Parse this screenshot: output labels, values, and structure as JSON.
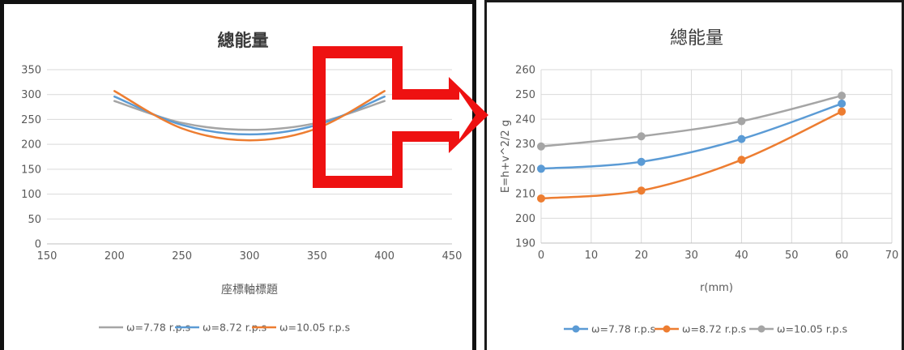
{
  "colors": {
    "gray": "#a5a5a5",
    "blue": "#5b9bd5",
    "orange": "#ed7d31",
    "grid": "#d9d9d9",
    "arrow": "#ee1111"
  },
  "chart_data": [
    {
      "type": "line",
      "title": "總能量",
      "xlabel": "座標軸標題",
      "ylabel": "",
      "xlim": [
        150,
        450
      ],
      "ylim": [
        0,
        350
      ],
      "xticks": [
        "150",
        "200",
        "250",
        "300",
        "350",
        "400",
        "450"
      ],
      "yticks": [
        "0",
        "50",
        "100",
        "150",
        "200",
        "250",
        "300",
        "350"
      ],
      "markers": false,
      "grid": true,
      "legend": "bottom",
      "series": [
        {
          "name": "ω=7.78 r.p.s",
          "color": "gray",
          "points": [
            [
              200,
              287
            ],
            [
              250,
              243
            ],
            [
              300,
              229
            ],
            [
              350,
              243
            ],
            [
              400,
              287
            ]
          ]
        },
        {
          "name": "ω=8.72 r.p.s",
          "color": "blue",
          "points": [
            [
              200,
              296
            ],
            [
              250,
              239
            ],
            [
              300,
              220
            ],
            [
              350,
              239
            ],
            [
              400,
              296
            ]
          ]
        },
        {
          "name": "ω=10.05 r.p.s",
          "color": "orange",
          "points": [
            [
              200,
              307
            ],
            [
              250,
              232
            ],
            [
              300,
              208
            ],
            [
              350,
              232
            ],
            [
              400,
              307
            ]
          ]
        }
      ]
    },
    {
      "type": "line",
      "title": "總能量",
      "xlabel": "r(mm)",
      "ylabel": "E=h+v^2/2 g",
      "xlim": [
        0,
        70
      ],
      "ylim": [
        190,
        260
      ],
      "xticks": [
        "0",
        "10",
        "20",
        "30",
        "40",
        "50",
        "60",
        "70"
      ],
      "yticks": [
        "190",
        "200",
        "210",
        "220",
        "230",
        "240",
        "250",
        "260"
      ],
      "markers": true,
      "grid": true,
      "legend": "bottom",
      "series": [
        {
          "name": "ω=7.78 r.p.s",
          "color": "blue",
          "points": [
            [
              0,
              220
            ],
            [
              20,
              222.8
            ],
            [
              40,
              232
            ],
            [
              60,
              246.3
            ]
          ]
        },
        {
          "name": "ω=8.72 r.p.s",
          "color": "orange",
          "points": [
            [
              0,
              208
            ],
            [
              20,
              211.2
            ],
            [
              40,
              223.6
            ],
            [
              60,
              243.1
            ]
          ]
        },
        {
          "name": "ω=10.05 r.p.s",
          "color": "gray",
          "points": [
            [
              0,
              229
            ],
            [
              20,
              233.1
            ],
            [
              40,
              239.2
            ],
            [
              60,
              249.5
            ]
          ]
        }
      ]
    }
  ]
}
